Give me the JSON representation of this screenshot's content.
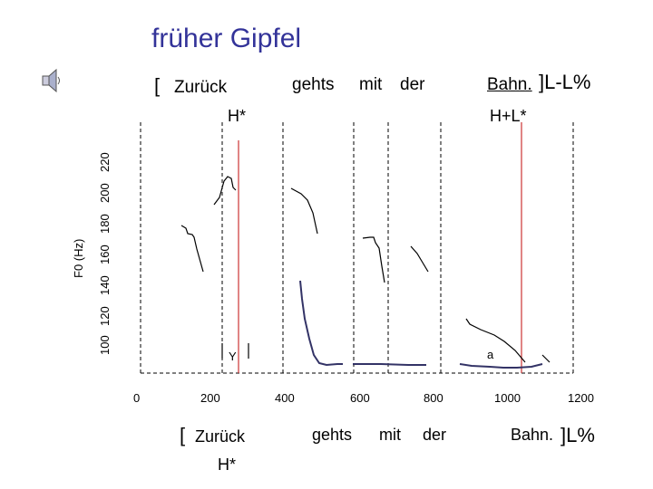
{
  "title": "früher Gipfel",
  "icons": {
    "speaker": "speaker-icon"
  },
  "top_tier": {
    "open_bracket": "[",
    "words": [
      "Zurück",
      "gehts",
      "mit",
      "der",
      "Bahn."
    ],
    "boundary": "]L-L%",
    "accents": [
      "H*",
      "H+L*"
    ]
  },
  "y_axis": {
    "label": "F0 (Hz)",
    "ticks": [
      "100",
      "120",
      "140",
      "160",
      "180",
      "200",
      "220"
    ]
  },
  "x_axis": {
    "ticks": [
      "0",
      "200",
      "400",
      "600",
      "800",
      "1000",
      "1200"
    ]
  },
  "plot_annotations": [
    "Y",
    "a"
  ],
  "bottom_tier": {
    "open_bracket": "[",
    "words": [
      "Zurück",
      "gehts",
      "mit",
      "der",
      "Bahn."
    ],
    "boundary": "]L%",
    "accents": [
      "H*"
    ]
  },
  "colors": {
    "title": "#333399",
    "alignment_line": "#cc3333",
    "synth_contour": "#333366",
    "contour": "#000000"
  }
}
